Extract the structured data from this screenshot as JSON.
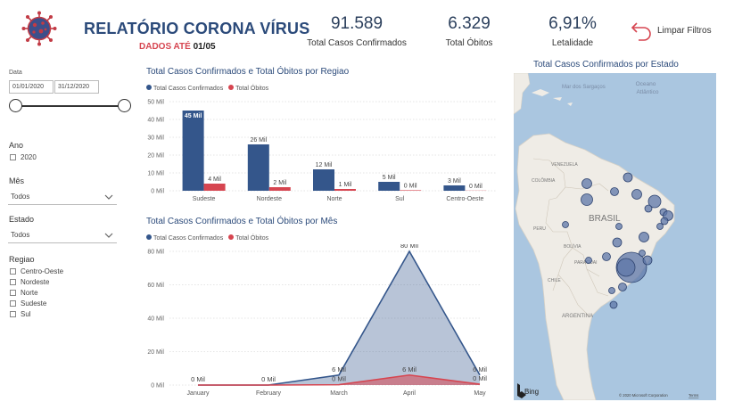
{
  "header": {
    "title": "RELATÓRIO CORONA VÍRUS",
    "subtitle_prefix": "DADOS ATÉ",
    "subtitle_date": "01/05",
    "reset_label": "Limpar Filtros"
  },
  "kpis": [
    {
      "value": "91.589",
      "label": "Total Casos Confirmados"
    },
    {
      "value": "6.329",
      "label": "Total Óbitos"
    },
    {
      "value": "6,91%",
      "label": "Letalidade"
    }
  ],
  "filters": {
    "date_label": "Data",
    "date_start": "01/01/2020",
    "date_end": "31/12/2020",
    "year_label": "Ano",
    "year_options": [
      "2020"
    ],
    "month_label": "Mês",
    "month_value": "Todos",
    "state_label": "Estado",
    "state_value": "Todos",
    "region_label": "Regiao",
    "region_options": [
      "Centro-Oeste",
      "Nordeste",
      "Norte",
      "Sudeste",
      "Sul"
    ]
  },
  "colors": {
    "confirmed": "#34568b",
    "deaths": "#d64550",
    "title": "#2b4a7a"
  },
  "chart_data": [
    {
      "type": "bar",
      "title": "Total Casos Confirmados e Total Óbitos por Regiao",
      "categories": [
        "Sudeste",
        "Nordeste",
        "Norte",
        "Sul",
        "Centro-Oeste"
      ],
      "series": [
        {
          "name": "Total Casos Confirmados",
          "values": [
            45,
            26,
            12,
            5,
            3
          ],
          "labels": [
            "45 Mil",
            "26 Mil",
            "12 Mil",
            "5 Mil",
            "3 Mil"
          ]
        },
        {
          "name": "Total Óbitos",
          "values": [
            4,
            2,
            1,
            0.3,
            0.1
          ],
          "labels": [
            "4 Mil",
            "2 Mil",
            "1 Mil",
            "0 Mil",
            "0 Mil"
          ]
        }
      ],
      "yticks": [
        "0 Mil",
        "10 Mil",
        "20 Mil",
        "30 Mil",
        "40 Mil",
        "50 Mil"
      ],
      "ylim": [
        0,
        50
      ],
      "legend": "top-left",
      "grid": true
    },
    {
      "type": "area",
      "title": "Total Casos Confirmados e Total Óbitos por Mês",
      "categories": [
        "January",
        "February",
        "March",
        "April",
        "May"
      ],
      "series": [
        {
          "name": "Total Casos Confirmados",
          "values": [
            0,
            0,
            6,
            80,
            6
          ],
          "labels": [
            "0 Mil",
            "0 Mil",
            "6 Mil",
            "80 Mil",
            "6 Mil"
          ]
        },
        {
          "name": "Total Óbitos",
          "values": [
            0,
            0,
            0.2,
            6,
            0.5
          ],
          "labels": [
            "",
            "",
            "0 Mil",
            "6 Mil",
            "0 Mil"
          ]
        }
      ],
      "yticks": [
        "0 Mil",
        "20 Mil",
        "40 Mil",
        "60 Mil",
        "80 Mil"
      ],
      "ylim": [
        0,
        80
      ],
      "legend": "top-left",
      "grid": true
    }
  ],
  "map": {
    "title": "Total Casos Confirmados por Estado",
    "labels": {
      "sea1": "Mar dos Sargaços",
      "sea2a": "Oceano",
      "sea2b": "Atlântico",
      "venezuela": "VENEZUELA",
      "colombia": "COLÔMBIA",
      "brasil": "BRASIL",
      "peru": "PERU",
      "bolivia": "BOLÍVIA",
      "paraguai": "PARAGUAI",
      "chile": "CHILE",
      "argentina": "ARGENTINA",
      "bing": "Bing",
      "copyright": "© 2020 Microsoft Corporation",
      "terms": "Terms"
    }
  }
}
